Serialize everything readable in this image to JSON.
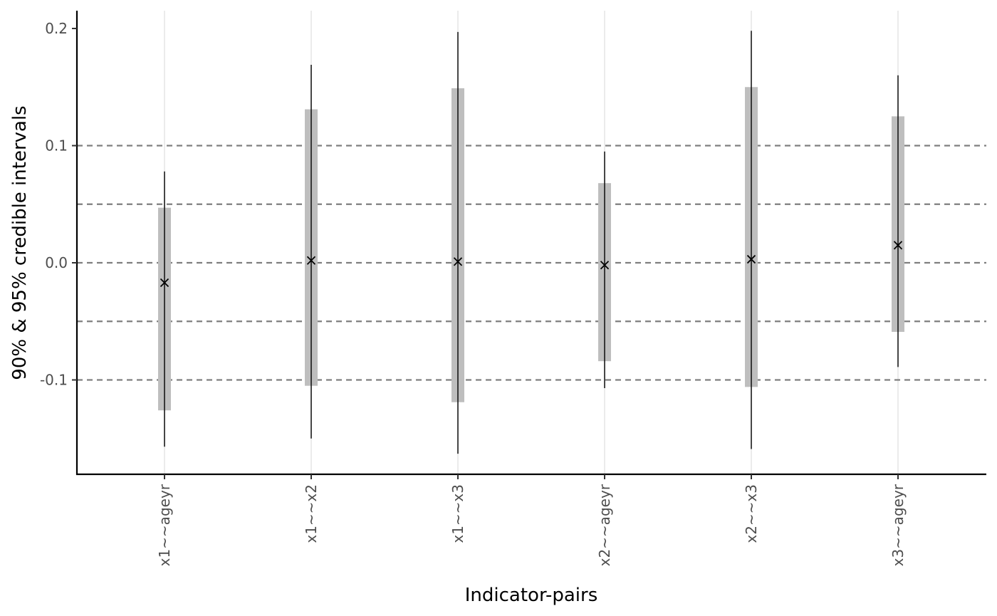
{
  "chart_data": {
    "type": "interval",
    "xlabel": "Indicator-pairs",
    "ylabel": "90% & 95% credible intervals",
    "ylim": [
      -0.2,
      0.215
    ],
    "yticks": [
      -0.1,
      0.0,
      0.1,
      0.2
    ],
    "ytick_labels": [
      "-0.1",
      "0.0",
      "0.1",
      "0.2"
    ],
    "reference_lines": [
      -0.1,
      -0.05,
      0.0,
      0.05,
      0.1
    ],
    "grid": "vertical major only",
    "categories": [
      "x1~~ageyr",
      "x1~~x2",
      "x1~~x3",
      "x2~~ageyr",
      "x2~~x3",
      "x3~~ageyr"
    ],
    "estimate": [
      -0.017,
      0.002,
      0.001,
      -0.002,
      0.003,
      0.015
    ],
    "ci90_low": [
      -0.126,
      -0.105,
      -0.119,
      -0.084,
      -0.106,
      -0.059
    ],
    "ci90_high": [
      0.047,
      0.131,
      0.149,
      0.068,
      0.15,
      0.125
    ],
    "ci95_low": [
      -0.157,
      -0.15,
      -0.163,
      -0.107,
      -0.159,
      -0.089
    ],
    "ci95_high": [
      0.078,
      0.169,
      0.197,
      0.095,
      0.198,
      0.16
    ],
    "colors": {
      "ci90": "#bebebe",
      "ci95": "#000000",
      "estimate": "#000000",
      "reference": "#7f7f7f",
      "grid": "#ebebeb",
      "axis": "#000000"
    }
  }
}
